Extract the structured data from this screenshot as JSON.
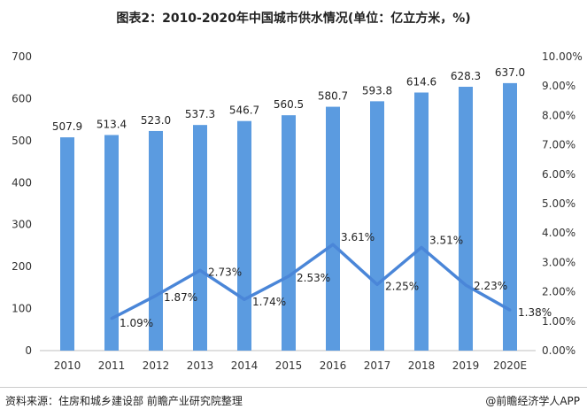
{
  "title": "图表2：2010-2020年中国城市供水情况(单位：亿立方米，%)",
  "source": "资料来源：住房和城乡建设部 前瞻产业研究院整理",
  "brand": "@前瞻经济学人APP",
  "chart_data": {
    "type": "bar+line",
    "categories": [
      "2010",
      "2011",
      "2012",
      "2013",
      "2014",
      "2015",
      "2016",
      "2017",
      "2018",
      "2019",
      "2020E"
    ],
    "series": [
      {
        "type": "bar",
        "axis": "left",
        "color": "#5B9BE0",
        "values": [
          507.9,
          513.4,
          523.0,
          537.3,
          546.7,
          560.5,
          580.7,
          593.8,
          614.6,
          628.3,
          637.0
        ],
        "labels": [
          "507.9",
          "513.4",
          "523.0",
          "537.3",
          "546.7",
          "560.5",
          "580.7",
          "593.8",
          "614.6",
          "628.3",
          "637.0"
        ]
      },
      {
        "type": "line",
        "axis": "right",
        "color": "#4A86D8",
        "values": [
          null,
          1.09,
          1.87,
          2.73,
          1.74,
          2.53,
          3.61,
          2.25,
          3.51,
          2.23,
          1.38
        ],
        "labels": [
          "",
          "1.09%",
          "1.87%",
          "2.73%",
          "1.74%",
          "2.53%",
          "3.61%",
          "2.25%",
          "3.51%",
          "2.23%",
          "1.38%"
        ]
      }
    ],
    "y_left": {
      "range": [
        0,
        700
      ],
      "ticks": [
        "0",
        "100",
        "200",
        "300",
        "400",
        "500",
        "600",
        "700"
      ]
    },
    "y_right": {
      "range": [
        0,
        10
      ],
      "ticks": [
        "0.00%",
        "1.00%",
        "2.00%",
        "3.00%",
        "4.00%",
        "5.00%",
        "6.00%",
        "7.00%",
        "8.00%",
        "9.00%",
        "10.00%"
      ]
    },
    "grid": false,
    "legend": "none"
  }
}
